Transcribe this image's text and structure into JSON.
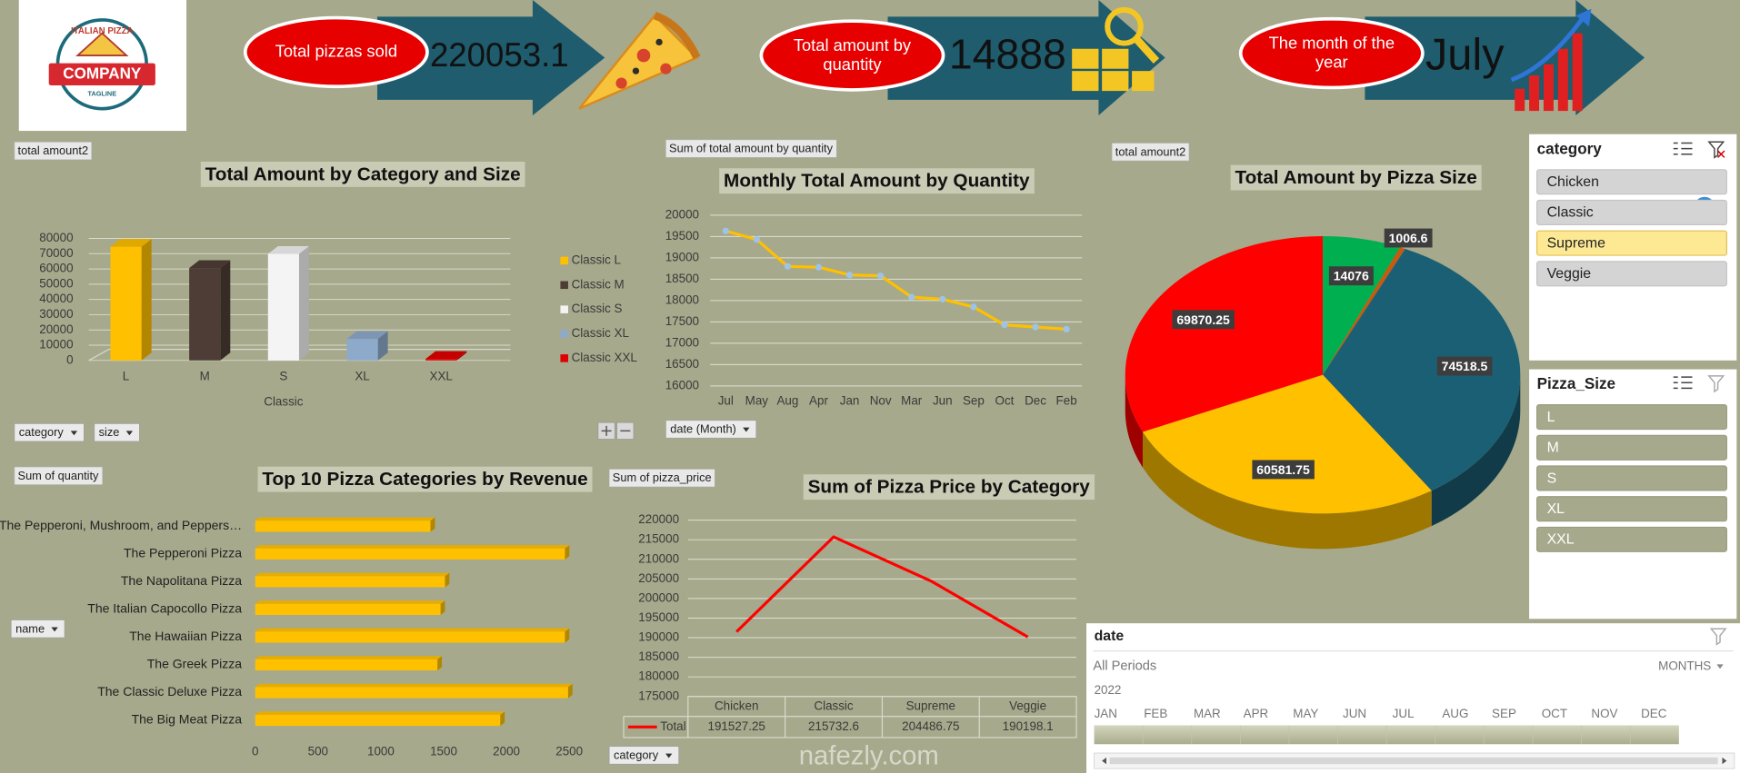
{
  "logo": {
    "line1": "ITALIAN PIZZA",
    "line2": "COMPANY",
    "line3": "TAGLINE"
  },
  "kpis": [
    {
      "label": "Total pizzas sold",
      "value": 220053.1
    },
    {
      "label": "Total amount by quantity",
      "value": 14888
    },
    {
      "label": "The month of the year",
      "value": "July"
    }
  ],
  "chart_data": [
    {
      "type": "bar3d",
      "title": "Total Amount by Category and Size",
      "value_field": "total amount2",
      "filter_fields": [
        "category",
        "size"
      ],
      "categories": [
        "L",
        "M",
        "S",
        "XL",
        "XXL"
      ],
      "xlabel": "Classic",
      "series": [
        {
          "name": "Classic L",
          "color": "#ffc000",
          "values": [
            74518.5,
            null,
            null,
            null,
            null
          ]
        },
        {
          "name": "Classic M",
          "color": "#4e3d36",
          "values": [
            null,
            60581.75,
            null,
            null,
            null
          ]
        },
        {
          "name": "Classic S",
          "color": "#f4f4f4",
          "values": [
            null,
            null,
            69870.25,
            null,
            null
          ]
        },
        {
          "name": "Classic XL",
          "color": "#8eaacb",
          "values": [
            null,
            null,
            null,
            14076,
            null
          ]
        },
        {
          "name": "Classic XXL",
          "color": "#e00000",
          "values": [
            null,
            null,
            null,
            null,
            1006.6
          ]
        }
      ],
      "ylim": [
        0,
        80000
      ],
      "yticks": [
        0,
        10000,
        20000,
        30000,
        40000,
        50000,
        60000,
        70000,
        80000
      ],
      "grid": true
    },
    {
      "type": "line",
      "title": "Monthly Total Amount by Quantity",
      "value_field": "Sum of total amount by quantity",
      "filter_fields": [
        "date (Month)"
      ],
      "categories": [
        "Jul",
        "May",
        "Aug",
        "Apr",
        "Jan",
        "Nov",
        "Mar",
        "Jun",
        "Sep",
        "Oct",
        "Dec",
        "Feb"
      ],
      "values": [
        19630,
        19430,
        18800,
        18780,
        18600,
        18580,
        18080,
        18030,
        17850,
        17430,
        17380,
        17330
      ],
      "color": "#ffc000",
      "marker_color": "#9dc3e6",
      "ylim": [
        16000,
        20000
      ],
      "yticks": [
        16000,
        16500,
        17000,
        17500,
        18000,
        18500,
        19000,
        19500,
        20000
      ],
      "grid": true
    },
    {
      "type": "barh",
      "title": "Top 10 Pizza Categories by Revenue",
      "value_field": "Sum of quantity",
      "filter_fields": [
        "name"
      ],
      "categories": [
        "The Pepperoni, Mushroom, and Peppers…",
        "The Pepperoni Pizza",
        "The Napolitana Pizza",
        "The Italian Capocollo Pizza",
        "The Hawaiian Pizza",
        "The Greek Pizza",
        "The Classic Deluxe Pizza",
        "The Big Meat Pizza"
      ],
      "values": [
        1395,
        2465,
        1510,
        1475,
        2465,
        1450,
        2490,
        1950
      ],
      "color": "#ffc000",
      "xlim": [
        0,
        2500
      ],
      "xticks": [
        0,
        500,
        1000,
        1500,
        2000,
        2500
      ]
    },
    {
      "type": "line",
      "title": "Sum of Pizza Price by Category",
      "value_field": "Sum of pizza_price",
      "filter_fields": [
        "category"
      ],
      "categories": [
        "Chicken",
        "Classic",
        "Supreme",
        "Veggie"
      ],
      "series": [
        {
          "name": "Total",
          "color": "#ff0000",
          "values": [
            191527.25,
            215732.6,
            204486.75,
            190198.1
          ]
        }
      ],
      "ylim": [
        175000,
        220000
      ],
      "yticks": [
        175000,
        180000,
        185000,
        190000,
        195000,
        200000,
        205000,
        210000,
        215000,
        220000
      ],
      "grid": true,
      "data_table": true
    },
    {
      "type": "pie",
      "title": "Total Amount by Pizza Size",
      "value_field": "total amount2",
      "values": [
        14076,
        1006.6,
        74518.5,
        60581.75,
        69870.25
      ],
      "colors": [
        "#00b050",
        "#c55a11",
        "#1b5f74",
        "#ffc000",
        "#ff0000"
      ]
    }
  ],
  "slicers": [
    {
      "title": "category",
      "items": [
        "Chicken",
        "Classic",
        "Supreme",
        "Veggie"
      ],
      "selected": "Supreme"
    },
    {
      "title": "Pizza_Size",
      "items": [
        "L",
        "M",
        "S",
        "XL",
        "XXL"
      ]
    }
  ],
  "timeline": {
    "title": "date",
    "period": "All Periods",
    "level": "MONTHS",
    "year": 2022,
    "months": [
      "JAN",
      "FEB",
      "MAR",
      "APR",
      "MAY",
      "JUN",
      "JUL",
      "AUG",
      "SEP",
      "OCT",
      "NOV",
      "DEC"
    ]
  },
  "watermark": "nafezly.com"
}
